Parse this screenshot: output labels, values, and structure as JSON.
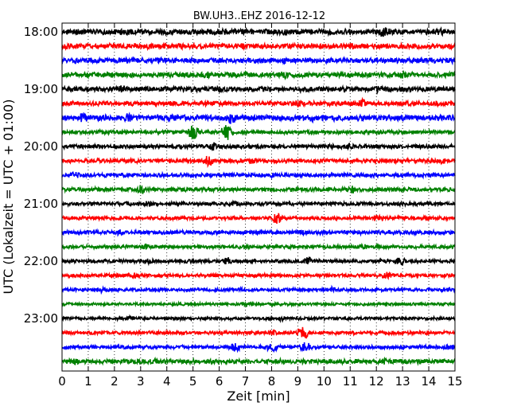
{
  "chart_data": {
    "type": "line",
    "title": "BW.UH3..EHZ 2016-12-12",
    "xlabel": "Zeit  [min]",
    "ylabel": "UTC (Lokalzeit = UTC + 01:00)",
    "xlim": [
      0,
      15
    ],
    "x_ticks": [
      "0",
      "1",
      "2",
      "3",
      "4",
      "5",
      "6",
      "7",
      "8",
      "9",
      "10",
      "11",
      "12",
      "13",
      "14",
      "15"
    ],
    "y_tick_labels": [
      "18:00",
      "19:00",
      "20:00",
      "21:00",
      "22:00",
      "23:00"
    ],
    "grid": "vertical dotted",
    "trace_colors": [
      "#000000",
      "#ff0000",
      "#0000ff",
      "#008000"
    ],
    "traces": [
      {
        "start": "18:00",
        "color": "#000000",
        "amplitude": 1.0,
        "events": [
          {
            "t": 2.3,
            "a": 1.3
          },
          {
            "t": 12.3,
            "a": 2.4
          },
          {
            "t": 14.5,
            "a": 1.6
          }
        ]
      },
      {
        "start": "18:15",
        "color": "#ff0000",
        "amplitude": 0.9,
        "events": [
          {
            "t": 11.0,
            "a": 1.3
          }
        ]
      },
      {
        "start": "18:30",
        "color": "#0000ff",
        "amplitude": 0.9,
        "events": [
          {
            "t": 0.5,
            "a": 1.3
          },
          {
            "t": 8.5,
            "a": 1.3
          }
        ]
      },
      {
        "start": "18:45",
        "color": "#008000",
        "amplitude": 0.9,
        "events": [
          {
            "t": 5.5,
            "a": 1.5
          },
          {
            "t": 8.5,
            "a": 1.6
          },
          {
            "t": 13.0,
            "a": 1.5
          }
        ]
      },
      {
        "start": "19:00",
        "color": "#000000",
        "amplitude": 0.9,
        "events": [
          {
            "t": 2.3,
            "a": 1.6
          },
          {
            "t": 6.0,
            "a": 1.6
          },
          {
            "t": 12.1,
            "a": 1.5
          }
        ]
      },
      {
        "start": "19:15",
        "color": "#ff0000",
        "amplitude": 0.8,
        "events": [
          {
            "t": 9.0,
            "a": 1.4
          },
          {
            "t": 11.5,
            "a": 1.8
          }
        ]
      },
      {
        "start": "19:30",
        "color": "#0000ff",
        "amplitude": 1.0,
        "events": [
          {
            "t": 0.8,
            "a": 2.0
          },
          {
            "t": 2.5,
            "a": 1.8
          },
          {
            "t": 4.2,
            "a": 1.5
          },
          {
            "t": 6.5,
            "a": 2.8
          },
          {
            "t": 9.5,
            "a": 1.9
          }
        ]
      },
      {
        "start": "19:45",
        "color": "#008000",
        "amplitude": 0.7,
        "events": [
          {
            "t": 5.0,
            "a": 3.0
          },
          {
            "t": 6.3,
            "a": 3.2
          }
        ]
      },
      {
        "start": "20:00",
        "color": "#000000",
        "amplitude": 0.7,
        "events": [
          {
            "t": 5.8,
            "a": 1.4
          },
          {
            "t": 11.0,
            "a": 1.2
          }
        ]
      },
      {
        "start": "20:15",
        "color": "#ff0000",
        "amplitude": 0.7,
        "events": [
          {
            "t": 5.6,
            "a": 2.2
          },
          {
            "t": 7.3,
            "a": 1.3
          },
          {
            "t": 14.5,
            "a": 1.3
          }
        ]
      },
      {
        "start": "20:30",
        "color": "#0000ff",
        "amplitude": 0.7,
        "events": [
          {
            "t": 0.5,
            "a": 1.3
          },
          {
            "t": 8.0,
            "a": 1.2
          }
        ]
      },
      {
        "start": "20:45",
        "color": "#008000",
        "amplitude": 0.7,
        "events": [
          {
            "t": 3.0,
            "a": 2.0
          },
          {
            "t": 11.1,
            "a": 1.6
          }
        ]
      },
      {
        "start": "21:00",
        "color": "#000000",
        "amplitude": 0.6,
        "events": [
          {
            "t": 3.3,
            "a": 1.2
          },
          {
            "t": 6.6,
            "a": 1.1
          }
        ]
      },
      {
        "start": "21:15",
        "color": "#ff0000",
        "amplitude": 0.6,
        "events": [
          {
            "t": 8.2,
            "a": 2.2
          },
          {
            "t": 12.0,
            "a": 1.3
          }
        ]
      },
      {
        "start": "21:30",
        "color": "#0000ff",
        "amplitude": 0.7,
        "events": [
          {
            "t": 2.2,
            "a": 1.3
          },
          {
            "t": 9.1,
            "a": 1.3
          }
        ]
      },
      {
        "start": "21:45",
        "color": "#008000",
        "amplitude": 0.6,
        "events": [
          {
            "t": 3.2,
            "a": 1.2
          },
          {
            "t": 11.5,
            "a": 1.1
          }
        ]
      },
      {
        "start": "22:00",
        "color": "#000000",
        "amplitude": 0.6,
        "events": [
          {
            "t": 3.3,
            "a": 1.5
          },
          {
            "t": 6.3,
            "a": 1.4
          },
          {
            "t": 9.4,
            "a": 1.8
          },
          {
            "t": 12.9,
            "a": 2.0
          }
        ]
      },
      {
        "start": "22:15",
        "color": "#ff0000",
        "amplitude": 0.6,
        "events": [
          {
            "t": 2.8,
            "a": 1.2
          },
          {
            "t": 12.4,
            "a": 1.4
          }
        ]
      },
      {
        "start": "22:30",
        "color": "#0000ff",
        "amplitude": 0.6,
        "events": [
          {
            "t": 1.5,
            "a": 1.2
          },
          {
            "t": 10.3,
            "a": 1.2
          }
        ]
      },
      {
        "start": "22:45",
        "color": "#008000",
        "amplitude": 0.5,
        "events": [
          {
            "t": 7.0,
            "a": 1.0
          }
        ]
      },
      {
        "start": "23:00",
        "color": "#000000",
        "amplitude": 0.5,
        "events": [
          {
            "t": 2.6,
            "a": 1.1
          },
          {
            "t": 8.4,
            "a": 1.0
          }
        ]
      },
      {
        "start": "23:15",
        "color": "#ff0000",
        "amplitude": 0.6,
        "events": [
          {
            "t": 8.0,
            "a": 1.3
          },
          {
            "t": 9.2,
            "a": 2.5
          }
        ]
      },
      {
        "start": "23:30",
        "color": "#0000ff",
        "amplitude": 0.6,
        "events": [
          {
            "t": 6.6,
            "a": 1.8
          },
          {
            "t": 8.0,
            "a": 2.1
          },
          {
            "t": 9.3,
            "a": 2.0
          },
          {
            "t": 14.8,
            "a": 1.4
          }
        ]
      },
      {
        "start": "23:45",
        "color": "#008000",
        "amplitude": 0.8,
        "events": [
          {
            "t": 0.5,
            "a": 1.2
          },
          {
            "t": 3.5,
            "a": 1.2
          },
          {
            "t": 12.3,
            "a": 1.2
          }
        ]
      }
    ]
  }
}
